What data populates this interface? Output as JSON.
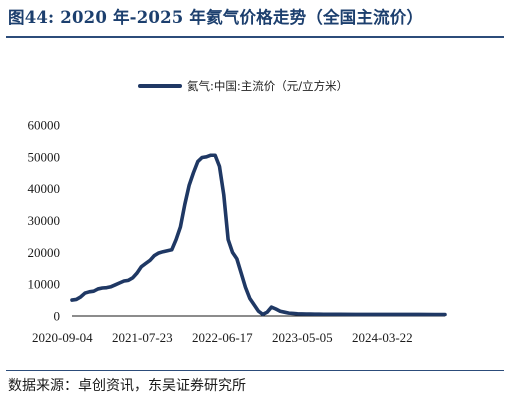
{
  "figure": {
    "title": "图44:  2020 年-2025 年氦气价格走势（全国主流价）",
    "source": "数据来源：卓创资讯，东吴证券研究所"
  },
  "colors": {
    "series": "#1f3864",
    "rule": "#2c4c7a",
    "title": "#1c3f6e"
  },
  "chart_data": {
    "type": "line",
    "title": "",
    "xlabel": "",
    "ylabel": "",
    "ylim": [
      0,
      60000
    ],
    "yticks": [
      0,
      10000,
      20000,
      30000,
      40000,
      50000,
      60000
    ],
    "ytick_labels": [
      "0",
      "10000",
      "20000",
      "30000",
      "40000",
      "50000",
      "60000"
    ],
    "xlim": [
      "2020-09-04",
      "2025-08-15"
    ],
    "xtick_labels": [
      "2020-09-04",
      "2021-07-23",
      "2022-06-17",
      "2023-05-05",
      "2024-03-22"
    ],
    "grid": false,
    "legend": "top-center",
    "series": [
      {
        "name": "氦气:中国:主流价（元/立方米）",
        "points": [
          [
            "2020-09-04",
            5000
          ],
          [
            "2020-09-25",
            5200
          ],
          [
            "2020-10-16",
            6000
          ],
          [
            "2020-11-06",
            7200
          ],
          [
            "2020-11-27",
            7600
          ],
          [
            "2020-12-18",
            7800
          ],
          [
            "2021-01-08",
            8500
          ],
          [
            "2021-01-29",
            8800
          ],
          [
            "2021-02-19",
            8900
          ],
          [
            "2021-03-12",
            9200
          ],
          [
            "2021-04-02",
            9800
          ],
          [
            "2021-04-23",
            10400
          ],
          [
            "2021-05-14",
            11000
          ],
          [
            "2021-06-04",
            11200
          ],
          [
            "2021-06-25",
            12000
          ],
          [
            "2021-07-16",
            13500
          ],
          [
            "2021-08-06",
            15500
          ],
          [
            "2021-08-27",
            16500
          ],
          [
            "2021-09-17",
            17500
          ],
          [
            "2021-10-08",
            19000
          ],
          [
            "2021-10-29",
            19800
          ],
          [
            "2021-11-19",
            20200
          ],
          [
            "2021-12-10",
            20500
          ],
          [
            "2021-12-31",
            20800
          ],
          [
            "2022-01-21",
            24000
          ],
          [
            "2022-02-11",
            28000
          ],
          [
            "2022-03-04",
            35000
          ],
          [
            "2022-03-25",
            41000
          ],
          [
            "2022-04-15",
            45000
          ],
          [
            "2022-05-06",
            48500
          ],
          [
            "2022-05-27",
            49800
          ],
          [
            "2022-06-17",
            50000
          ],
          [
            "2022-07-08",
            50500
          ],
          [
            "2022-07-29",
            50500
          ],
          [
            "2022-08-19",
            47000
          ],
          [
            "2022-09-09",
            38000
          ],
          [
            "2022-09-30",
            24000
          ],
          [
            "2022-10-21",
            20000
          ],
          [
            "2022-11-11",
            18000
          ],
          [
            "2022-12-02",
            13500
          ],
          [
            "2022-12-23",
            9000
          ],
          [
            "2023-01-13",
            5500
          ],
          [
            "2023-02-03",
            3500
          ],
          [
            "2023-02-24",
            1500
          ],
          [
            "2023-03-17",
            500
          ],
          [
            "2023-04-07",
            1200
          ],
          [
            "2023-04-28",
            2800
          ],
          [
            "2023-05-19",
            2200
          ],
          [
            "2023-06-09",
            1500
          ],
          [
            "2023-06-30",
            1200
          ],
          [
            "2023-07-21",
            900
          ],
          [
            "2023-08-11",
            800
          ],
          [
            "2023-09-01",
            700
          ],
          [
            "2023-09-22",
            650
          ],
          [
            "2023-10-13",
            600
          ],
          [
            "2023-11-03",
            600
          ],
          [
            "2023-11-24",
            580
          ],
          [
            "2023-12-15",
            560
          ],
          [
            "2024-01-05",
            550
          ],
          [
            "2024-03-22",
            520
          ],
          [
            "2024-06-07",
            500
          ],
          [
            "2024-08-23",
            500
          ],
          [
            "2024-11-08",
            500
          ],
          [
            "2025-01-24",
            480
          ],
          [
            "2025-04-11",
            480
          ],
          [
            "2025-06-27",
            470
          ],
          [
            "2025-08-15",
            470
          ]
        ]
      }
    ]
  }
}
